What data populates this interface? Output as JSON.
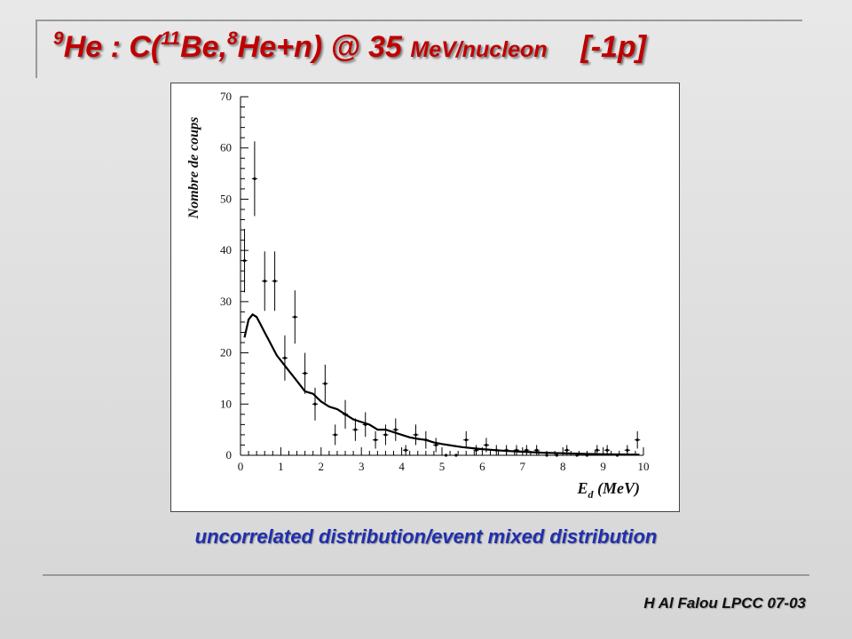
{
  "slide": {
    "title_parts": {
      "sup1": "9",
      "t1": "He :  C(",
      "sup2": "11",
      "t2": "Be,",
      "sup3": "8",
      "t3": "He+n) @ 35 ",
      "t4": "MeV/nucleon",
      "t5": "    [-1p]"
    },
    "caption": "uncorrelated distribution/event mixed distribution",
    "author": "H Al Falou LPCC 07-03",
    "colors": {
      "title": "#c00000",
      "caption": "#1f2fb0",
      "background": "#e0e0e0"
    }
  },
  "chart_data": {
    "type": "scatter",
    "ylabel": "Nombre de coups",
    "xlabel_main": "E",
    "xlabel_sub": "d",
    "xlabel_unit": " (MeV)",
    "xlim": [
      0,
      10
    ],
    "ylim": [
      0,
      70
    ],
    "x_ticks": [
      "0",
      "1",
      "2",
      "3",
      "4",
      "5",
      "6",
      "7",
      "8",
      "9",
      "10"
    ],
    "y_ticks": [
      "0",
      "10",
      "20",
      "30",
      "40",
      "50",
      "60",
      "70"
    ],
    "grid": false,
    "series": [
      {
        "kind": "points_with_errors",
        "x": [
          0.1,
          0.35,
          0.6,
          0.85,
          1.1,
          1.35,
          1.6,
          1.85,
          2.1,
          2.35,
          2.6,
          2.85,
          3.1,
          3.35,
          3.6,
          3.85,
          4.1,
          4.35,
          4.6,
          4.85,
          5.1,
          5.35,
          5.6,
          5.85,
          6.1,
          6.35,
          6.6,
          6.85,
          7.1,
          7.35,
          7.6,
          7.85,
          8.1,
          8.35,
          8.6,
          8.85,
          9.1,
          9.35,
          9.6,
          9.85
        ],
        "y": [
          38,
          54,
          34,
          34,
          19,
          27,
          16,
          10,
          14,
          4,
          8,
          5,
          6,
          3,
          4,
          5,
          1,
          4,
          3,
          2,
          0,
          0,
          3,
          1,
          2,
          1,
          1,
          1,
          1,
          1,
          0,
          0,
          1,
          0,
          0,
          1,
          1,
          0,
          1,
          3
        ],
        "err": [
          6.2,
          7.3,
          5.8,
          5.8,
          4.4,
          5.2,
          4.0,
          3.2,
          3.7,
          2.0,
          2.8,
          2.2,
          2.4,
          1.7,
          2.0,
          2.2,
          1.0,
          2.0,
          1.7,
          1.4,
          0,
          0,
          1.7,
          1.0,
          1.4,
          1.0,
          1.0,
          1.0,
          1.0,
          1.0,
          0,
          0,
          1.0,
          0,
          0,
          1.0,
          1.0,
          0,
          1.0,
          1.7
        ]
      },
      {
        "kind": "curve",
        "x": [
          0.1,
          0.2,
          0.3,
          0.4,
          0.5,
          0.6,
          0.7,
          0.8,
          0.9,
          1.0,
          1.2,
          1.4,
          1.6,
          1.8,
          2.0,
          2.2,
          2.4,
          2.6,
          2.8,
          3.0,
          3.2,
          3.4,
          3.6,
          3.8,
          4.0,
          4.2,
          4.4,
          4.6,
          4.8,
          5.0,
          5.5,
          6.0,
          6.5,
          7.0,
          7.5,
          8.0,
          8.5,
          9.0,
          9.5,
          9.9
        ],
        "y": [
          23,
          26.5,
          27.5,
          27,
          25.5,
          24,
          22.5,
          21,
          19.5,
          18.5,
          16.5,
          14.5,
          12.5,
          12,
          10.5,
          9.5,
          9,
          8,
          7,
          6.5,
          6,
          5,
          5,
          4.5,
          4,
          3.5,
          3.2,
          3,
          2.5,
          2.2,
          1.6,
          1.2,
          0.9,
          0.7,
          0.5,
          0.4,
          0.3,
          0.2,
          0.15,
          0.1
        ]
      }
    ]
  }
}
